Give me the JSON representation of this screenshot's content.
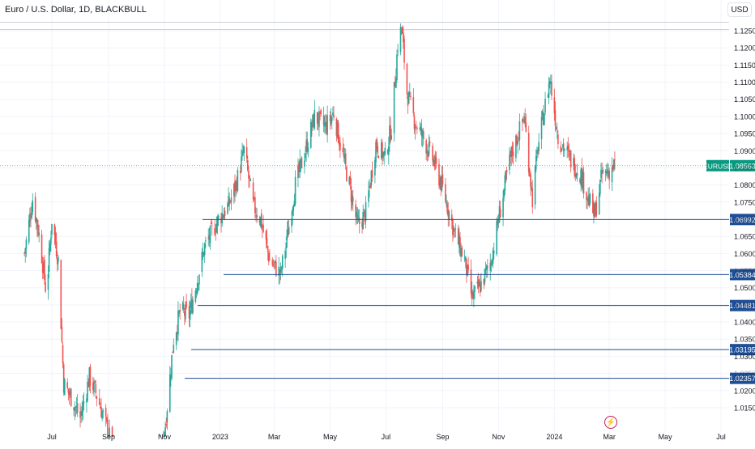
{
  "header": {
    "legend": "Euro / U.S. Dollar, 1D, BLACKBULL",
    "currency_button": "USD"
  },
  "icons": {
    "bottom": "flash-icon"
  },
  "colors": {
    "up": "#26a69a",
    "down": "#ef5350",
    "hline": "#1e4e96",
    "last_price": "#089981",
    "grid": "#f0f3fa"
  },
  "chart_data": {
    "type": "candlestick",
    "symbol": "EURUSD",
    "title": "Euro / U.S. Dollar, 1D, BLACKBULL",
    "ylim": [
      1.011,
      1.128
    ],
    "y_ticks": [
      "1.12500",
      "1.12000",
      "1.11500",
      "1.11000",
      "1.10500",
      "1.10000",
      "1.09500",
      "1.09000",
      "1.08500",
      "1.08000",
      "1.07500",
      "1.07000",
      "1.06500",
      "1.06000",
      "1.05500",
      "1.05000",
      "1.04500",
      "1.04000",
      "1.03500",
      "1.03000",
      "1.02500",
      "1.02000",
      "1.01500"
    ],
    "x_ticks": [
      "Jul",
      "Sep",
      "Nov",
      "2023",
      "Mar",
      "May",
      "Jul",
      "Sep",
      "Nov",
      "2024",
      "Mar",
      "May",
      "Jul"
    ],
    "last_price": {
      "label": "EURUSD",
      "value": "1.08563"
    },
    "horizontal_levels": [
      {
        "value": 1.06992,
        "label": "1.06992"
      },
      {
        "value": 1.05384,
        "label": "1.05384"
      },
      {
        "value": 1.04481,
        "label": "1.04481"
      },
      {
        "value": 1.03195,
        "label": "1.03195"
      },
      {
        "value": 1.02357,
        "label": "1.02357"
      }
    ],
    "top_lines": [
      1.1275,
      1.1253
    ],
    "price_path": [
      [
        "2022-06-01",
        1.06
      ],
      [
        "2022-06-10",
        1.076
      ],
      [
        "2022-06-18",
        1.064
      ],
      [
        "2022-06-25",
        1.048
      ],
      [
        "2022-07-01",
        1.07
      ],
      [
        "2022-07-08",
        1.058
      ],
      [
        "2022-07-14",
        1.022
      ],
      [
        "2022-07-22",
        1.018
      ],
      [
        "2022-08-01",
        1.012
      ],
      [
        "2022-08-11",
        1.024
      ],
      [
        "2022-08-20",
        1.018
      ],
      [
        "2022-08-29",
        1.01
      ],
      [
        "2022-09-28",
        0.985
      ],
      [
        "2022-10-25",
        1.0
      ],
      [
        "2022-11-02",
        1.01
      ],
      [
        "2022-11-11",
        1.035
      ],
      [
        "2022-11-18",
        1.043
      ],
      [
        "2022-11-28",
        1.042
      ],
      [
        "2022-12-05",
        1.05
      ],
      [
        "2022-12-15",
        1.062
      ],
      [
        "2022-12-30",
        1.07
      ],
      [
        "2023-01-10",
        1.074
      ],
      [
        "2023-01-18",
        1.08
      ],
      [
        "2023-01-27",
        1.09
      ],
      [
        "2023-02-06",
        1.074
      ],
      [
        "2023-02-14",
        1.07
      ],
      [
        "2023-02-24",
        1.058
      ],
      [
        "2023-03-08",
        1.054
      ],
      [
        "2023-03-17",
        1.068
      ],
      [
        "2023-03-24",
        1.08
      ],
      [
        "2023-04-04",
        1.09
      ],
      [
        "2023-04-14",
        1.1
      ],
      [
        "2023-04-26",
        1.097
      ],
      [
        "2023-05-05",
        1.101
      ],
      [
        "2023-05-12",
        1.092
      ],
      [
        "2023-05-22",
        1.08
      ],
      [
        "2023-05-31",
        1.068
      ],
      [
        "2023-06-09",
        1.072
      ],
      [
        "2023-06-20",
        1.092
      ],
      [
        "2023-06-30",
        1.088
      ],
      [
        "2023-07-07",
        1.097
      ],
      [
        "2023-07-14",
        1.121
      ],
      [
        "2023-07-18",
        1.126
      ],
      [
        "2023-07-24",
        1.107
      ],
      [
        "2023-08-01",
        1.099
      ],
      [
        "2023-08-10",
        1.094
      ],
      [
        "2023-08-22",
        1.087
      ],
      [
        "2023-09-01",
        1.079
      ],
      [
        "2023-09-14",
        1.066
      ],
      [
        "2023-09-25",
        1.058
      ],
      [
        "2023-10-03",
        1.047
      ],
      [
        "2023-10-13",
        1.051
      ],
      [
        "2023-10-24",
        1.058
      ],
      [
        "2023-11-03",
        1.073
      ],
      [
        "2023-11-14",
        1.088
      ],
      [
        "2023-11-29",
        1.1
      ],
      [
        "2023-12-08",
        1.076
      ],
      [
        "2023-12-14",
        1.091
      ],
      [
        "2023-12-27",
        1.111
      ],
      [
        "2024-01-05",
        1.094
      ],
      [
        "2024-01-17",
        1.088
      ],
      [
        "2024-01-30",
        1.083
      ],
      [
        "2024-02-07",
        1.076
      ],
      [
        "2024-02-14",
        1.071
      ],
      [
        "2024-02-22",
        1.083
      ],
      [
        "2024-03-01",
        1.084
      ],
      [
        "2024-03-07",
        1.086
      ]
    ]
  }
}
